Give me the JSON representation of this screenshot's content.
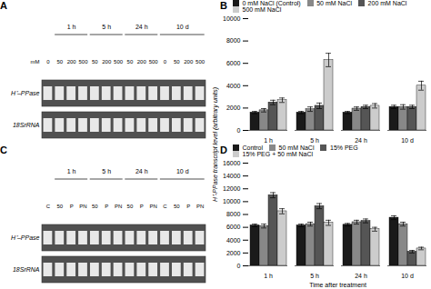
{
  "chart_data": [
    {
      "type": "gel",
      "title": "A",
      "categories": [
        "0",
        "50",
        "200",
        "500",
        "50",
        "200",
        "500",
        "50",
        "200",
        "500",
        "0",
        "50",
        "200",
        "500"
      ],
      "groups": [
        null,
        "1 h",
        "1 h",
        "1 h",
        "5 h",
        "5 h",
        "5 h",
        "24 h",
        "24 h",
        "24 h",
        "10 d",
        "10 d",
        "10 d",
        "10 d"
      ],
      "rows": [
        "H⁺–PPase",
        "18SrRNA"
      ],
      "xlabel": "mM",
      "color": "#e8e8e8"
    },
    {
      "type": "bar",
      "title": "B",
      "categories": [
        "1 h",
        "5 h",
        "24 h",
        "10 d"
      ],
      "series": [
        {
          "name": "0 mM NaCl (Control)",
          "color": "#1a1a1a",
          "values": [
            1600,
            1600,
            1600,
            2100
          ],
          "errors": [
            100,
            100,
            100,
            150
          ]
        },
        {
          "name": "50 mM NaCl",
          "color": "#888888",
          "values": [
            1800,
            1900,
            1950,
            2100
          ],
          "errors": [
            150,
            200,
            150,
            200
          ]
        },
        {
          "name": "200 mM NaCl",
          "color": "#555555",
          "values": [
            2500,
            2200,
            2100,
            2100
          ],
          "errors": [
            200,
            250,
            150,
            150
          ]
        },
        {
          "name": "500 mM NaCl",
          "color": "#cccccc",
          "values": [
            2700,
            6300,
            2200,
            4000
          ],
          "errors": [
            200,
            600,
            200,
            400
          ]
        }
      ],
      "ylabel": "H⁺-PPase transcript level (arbitrary units)",
      "ylim": [
        0,
        10000
      ],
      "yticks": [
        0,
        2000,
        4000,
        6000,
        8000,
        10000
      ],
      "grid": false,
      "legend": "top"
    },
    {
      "type": "gel",
      "title": "C",
      "categories": [
        "C",
        "50",
        "P",
        "PN",
        "50",
        "P",
        "PN",
        "50",
        "P",
        "PN",
        "C",
        "50",
        "P",
        "PN"
      ],
      "groups": [
        null,
        "1 h",
        "1 h",
        "1 h",
        "5 h",
        "5 h",
        "5 h",
        "24 h",
        "24 h",
        "24 h",
        "10 d",
        "10 d",
        "10 d",
        "10 d"
      ],
      "rows": [
        "H⁺–PPase",
        "18SrRNA"
      ],
      "color": "#e8e8e8"
    },
    {
      "type": "bar",
      "title": "D",
      "categories": [
        "1 h",
        "5 h",
        "24 h",
        "10 d"
      ],
      "series": [
        {
          "name": "Control",
          "color": "#1a1a1a",
          "values": [
            6300,
            6300,
            6400,
            7500
          ],
          "errors": [
            200,
            200,
            200,
            300
          ]
        },
        {
          "name": "50 mM NaCl",
          "color": "#888888",
          "values": [
            6200,
            6500,
            6800,
            6500
          ],
          "errors": [
            300,
            300,
            300,
            300
          ]
        },
        {
          "name": "15% PEG",
          "color": "#555555",
          "values": [
            11000,
            9300,
            7000,
            2200
          ],
          "errors": [
            400,
            400,
            300,
            200
          ]
        },
        {
          "name": "15% PEG + 50 mM NaCl",
          "color": "#cccccc",
          "values": [
            8500,
            6700,
            5700,
            2700
          ],
          "errors": [
            400,
            400,
            300,
            200
          ]
        }
      ],
      "xlabel": "Time after treatment",
      "ylim": [
        0,
        16000
      ],
      "yticks": [
        0,
        2000,
        4000,
        6000,
        8000,
        10000,
        12000,
        14000,
        16000
      ],
      "grid": false,
      "legend": "top"
    }
  ]
}
